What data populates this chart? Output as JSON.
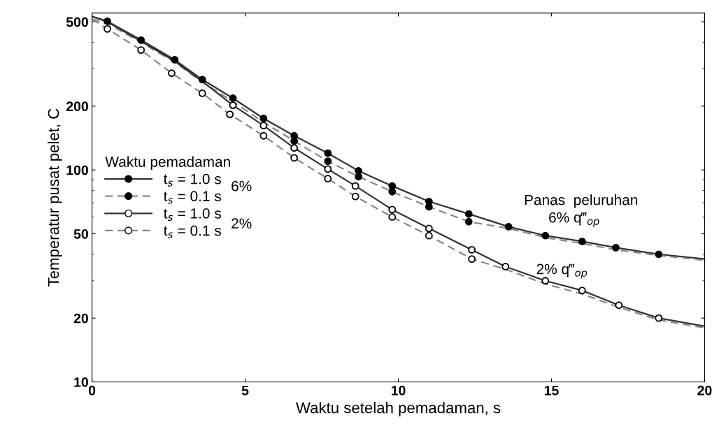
{
  "chart_data": {
    "type": "line",
    "xlabel": "Waktu setelah pemadaman, s",
    "ylabel": "Temperatur pusat pelet, C",
    "legend_title": "Waktu pemadaman",
    "legend": "left",
    "log": "y",
    "grid": false,
    "xlim": [
      0,
      20
    ],
    "xticks": [
      0,
      5,
      10,
      15,
      20
    ],
    "ylim": [
      10,
      550
    ],
    "yticks": [
      10,
      20,
      50,
      100,
      200,
      500
    ],
    "series": [
      {
        "name": "t$_{s}$ = 1.0 s",
        "color": "#333333",
        "line_style": "solid",
        "x": [
          0,
          0.5,
          1.6,
          2.7,
          3.6,
          4.6,
          5.6,
          6.6,
          7.7,
          8.7,
          9.8,
          11.0,
          12.3,
          13.6,
          14.8,
          16.0,
          17.1,
          18.5,
          20
        ],
        "values": [
          530,
          503,
          410,
          331,
          267,
          218,
          175,
          145,
          120,
          99,
          84,
          71,
          62,
          54,
          49,
          46,
          43,
          40,
          38
        ]
      },
      {
        "name": "t$_{s}$ = 0.1 s",
        "color": "#888888",
        "line_style": "dashed",
        "x": [
          0,
          0.5,
          1.6,
          2.7,
          3.6,
          4.6,
          5.6,
          6.6,
          7.7,
          8.7,
          9.8,
          11.0,
          12.3,
          13.6,
          14.8,
          16.0,
          17.1,
          18.5,
          20
        ],
        "values": [
          515,
          490,
          400,
          322,
          260,
          210,
          168,
          137,
          110,
          93,
          79,
          67,
          57,
          53,
          48,
          45,
          42,
          39.5,
          37.5
        ]
      },
      {
        "name": "t$_{s}$ = 1.0 s",
        "color": "#333333",
        "line_style": "solid",
        "x": [
          0,
          0.5,
          1.6,
          2.7,
          3.6,
          4.6,
          5.6,
          6.6,
          7.7,
          8.6,
          9.8,
          11.0,
          12.4,
          13.5,
          14.8,
          16.0,
          17.2,
          18.5,
          20
        ],
        "values": [
          530,
          500,
          405,
          326,
          262,
          202,
          162,
          127,
          101,
          84,
          65,
          53,
          42,
          35,
          30,
          27,
          23,
          20,
          18.3
        ]
      },
      {
        "name": "t$_{s}$ = 0.1 s",
        "color": "#888888",
        "line_style": "dashed",
        "x": [
          0,
          0.5,
          1.6,
          2.6,
          3.6,
          4.5,
          5.6,
          6.6,
          7.7,
          8.6,
          9.8,
          11.0,
          12.4,
          13.5,
          14.8,
          16.0,
          17.2,
          18.5,
          20
        ],
        "values": [
          515,
          463,
          368,
          286,
          230,
          183,
          145,
          114,
          91,
          75,
          60,
          49,
          38,
          34,
          29,
          26,
          22.5,
          19.6,
          18
        ]
      },
      {
        "type": "scatter",
        "color": "#000000",
        "marker": "circle",
        "x": [
          0.5,
          1.6,
          2.7,
          3.6,
          4.6,
          5.6,
          6.6,
          7.7,
          8.7,
          9.8,
          11.0,
          12.3,
          13.6,
          14.8,
          16.0,
          17.1,
          18.5
        ],
        "values": [
          503,
          410,
          331,
          267,
          218,
          175,
          145,
          120,
          99,
          84,
          71,
          62,
          54,
          49,
          46,
          43,
          40
        ]
      },
      {
        "type": "scatter",
        "color": "#000000",
        "marker": "circle",
        "x": [
          6.6,
          7.7,
          8.7,
          9.8,
          11.0,
          12.3
        ],
        "values": [
          137,
          110,
          93,
          79,
          67,
          57
        ]
      },
      {
        "type": "scatter",
        "color": "#ffffff",
        "marker": "circle",
        "x": [
          4.6,
          5.6,
          6.6,
          7.7,
          8.6,
          9.8,
          11.0,
          12.4,
          13.5,
          14.8,
          16.0,
          17.2,
          18.5
        ],
        "values": [
          202,
          162,
          127,
          101,
          84,
          65,
          53,
          42,
          35,
          30,
          27,
          23,
          20
        ]
      },
      {
        "type": "scatter",
        "color": "#ffffff",
        "marker": "circle",
        "x": [
          0.5,
          1.6,
          2.6,
          3.6,
          4.5,
          5.6,
          6.6,
          7.7,
          8.6,
          9.8,
          11.0,
          12.4
        ],
        "values": [
          463,
          368,
          286,
          230,
          183,
          145,
          114,
          91,
          75,
          60,
          49,
          38
        ]
      }
    ],
    "annotations": [
      "6%",
      "2%",
      "Panas  peluruhan",
      "6% q‴$_{op}$",
      "2% q‴$_{op}$"
    ]
  }
}
